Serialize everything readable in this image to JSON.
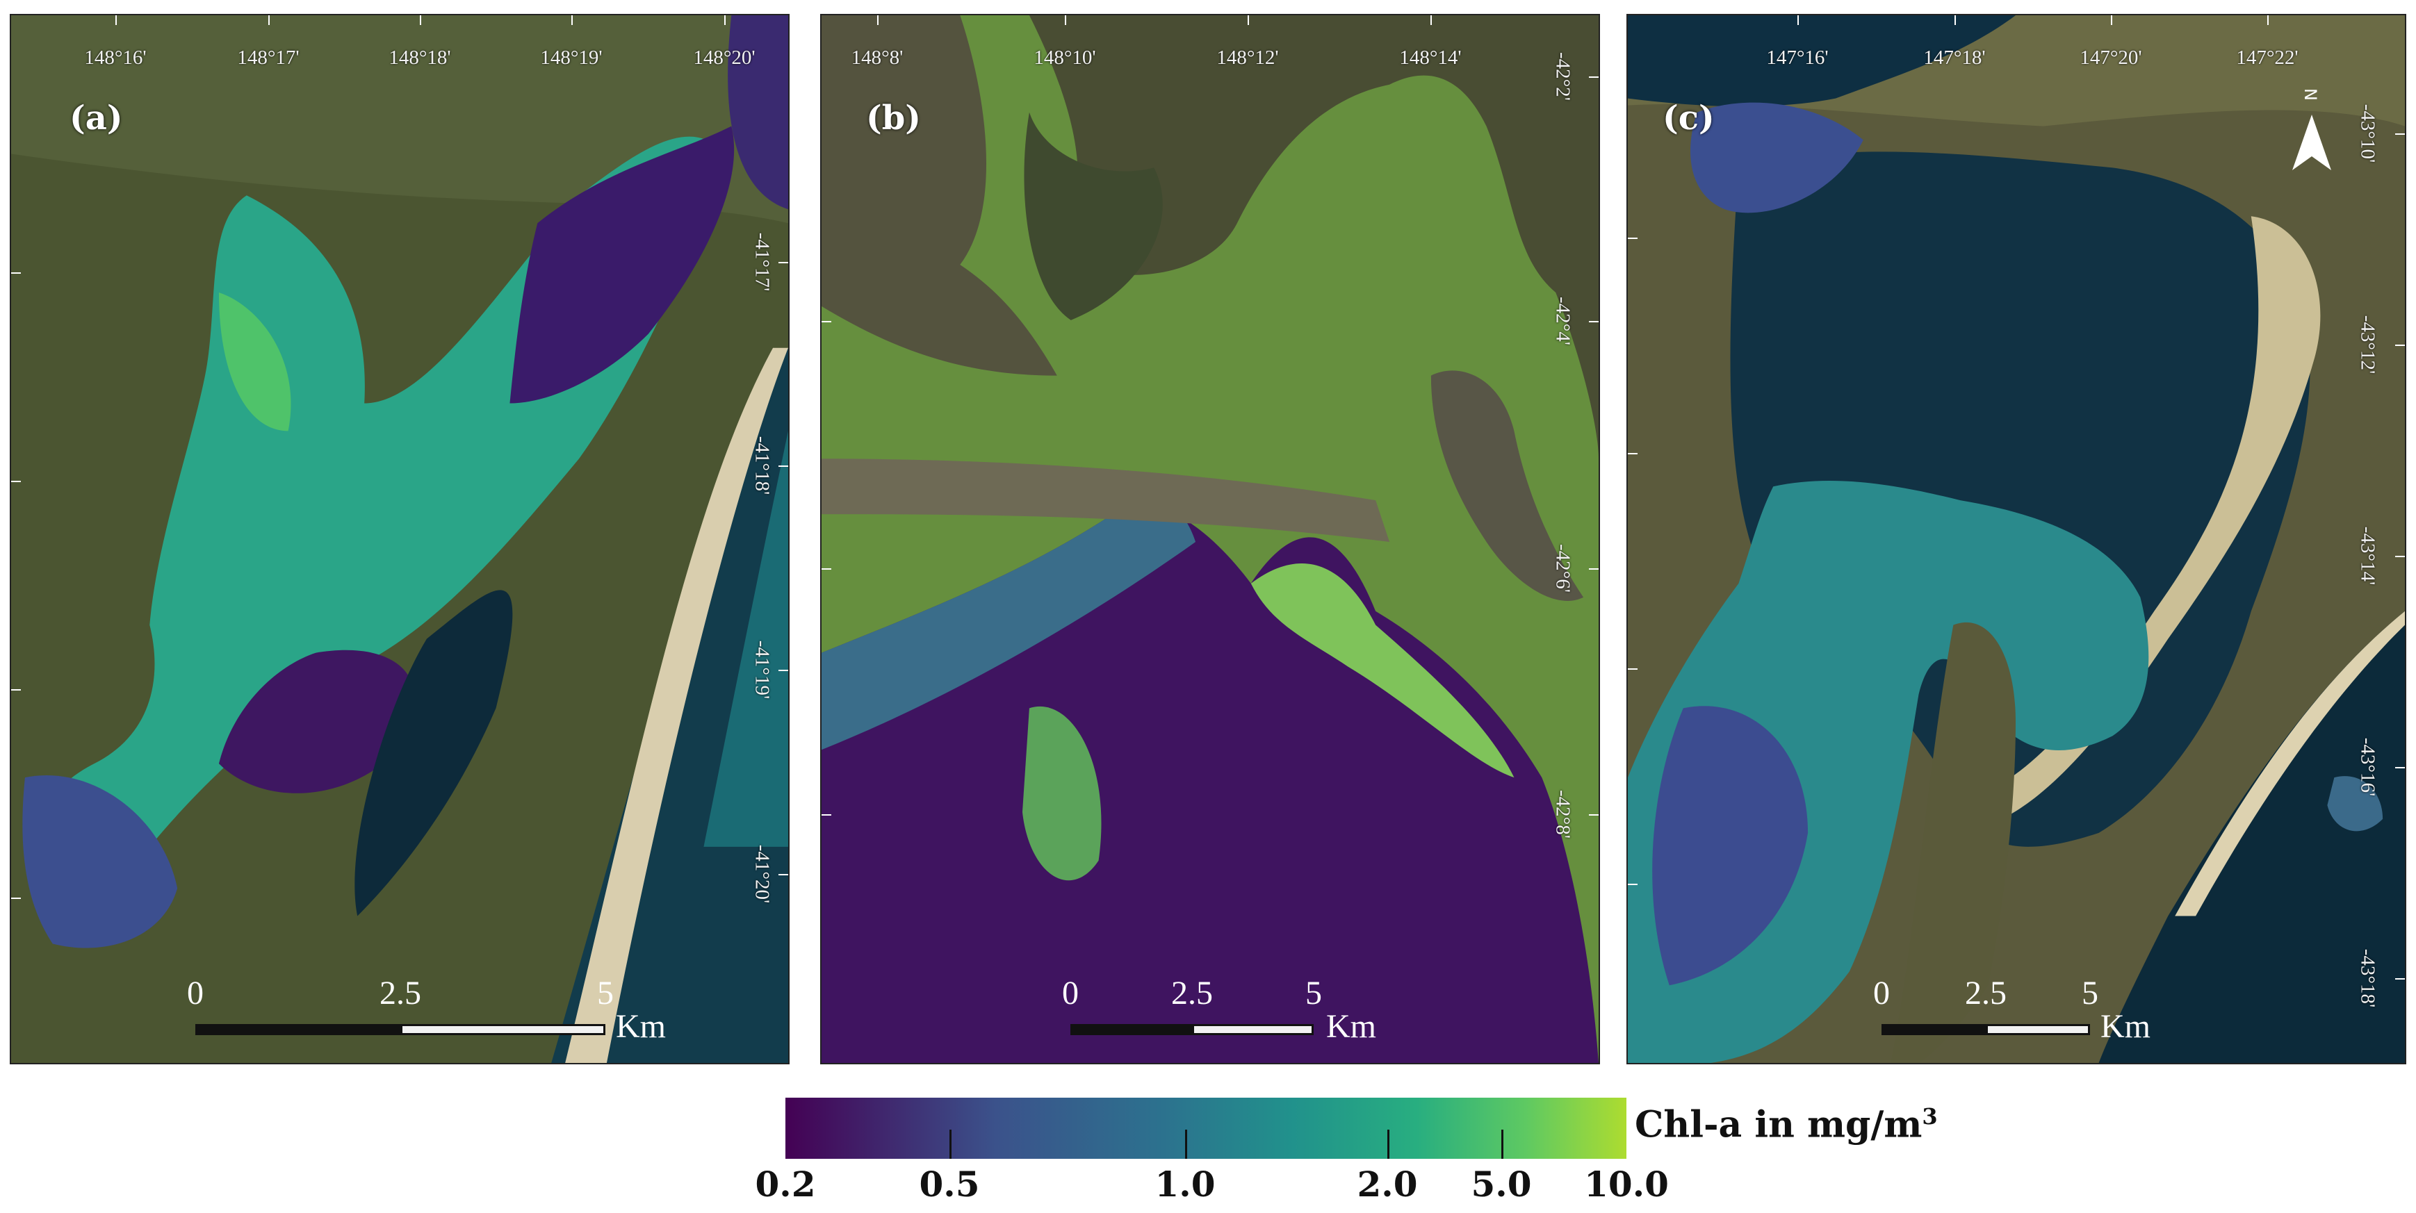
{
  "panels": [
    {
      "label": "(a)",
      "top_ticks": [
        "148°16'",
        "148°17'",
        "148°18'",
        "148°19'",
        "148°20'"
      ],
      "right_ticks": [
        "-41°17'",
        "-41°18'",
        "-41°19'",
        "-41°20'"
      ],
      "scale": {
        "zero": "0",
        "mid": "2.5",
        "max": "5",
        "unit": "Km"
      }
    },
    {
      "label": "(b)",
      "top_ticks": [
        "148°8'",
        "148°10'",
        "148°12'",
        "148°14'"
      ],
      "right_ticks": [
        "-42°2'",
        "-42°4'",
        "-42°6'",
        "-42°8'"
      ],
      "scale": {
        "zero": "0",
        "mid": "2.5",
        "max": "5",
        "unit": "Km"
      }
    },
    {
      "label": "(c)",
      "top_ticks": [
        "147°16'",
        "147°18'",
        "147°20'",
        "147°22'"
      ],
      "right_ticks": [
        "-43°10'",
        "-43°12'",
        "-43°14'",
        "-43°16'",
        "-43°18'"
      ],
      "scale": {
        "zero": "0",
        "mid": "2.5",
        "max": "5",
        "unit": "Km"
      }
    }
  ],
  "north_arrow": {
    "label": "N",
    "icon": "north-arrow-icon"
  },
  "legend": {
    "title_main": "Chl-a in mg/m",
    "title_sup": "3",
    "ticks": [
      "0.2",
      "0.5",
      "1.0",
      "2.0",
      "5.0",
      "10.0"
    ],
    "colors": [
      "#440154",
      "#3b528b",
      "#21918c",
      "#5ec962",
      "#addc30"
    ]
  },
  "colors": {
    "land": "#4a5230",
    "cloud_mask": "#668f3e",
    "deep_water": "#0f3342"
  }
}
